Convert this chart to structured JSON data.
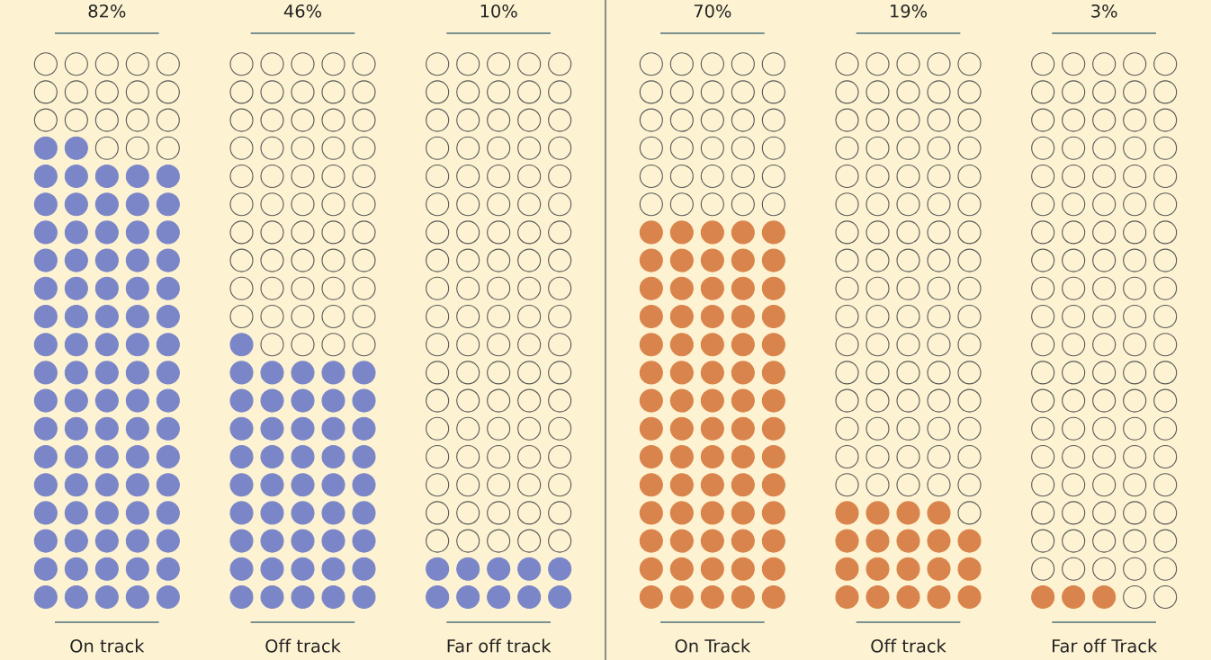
{
  "chart_data": {
    "type": "other",
    "categories": [
      "On track",
      "Off track",
      "Far off track",
      "On Track",
      "Off track",
      "Far off Track"
    ],
    "values": [
      82,
      46,
      10,
      70,
      19,
      3
    ],
    "value_labels": [
      "82%",
      "46%",
      "10%",
      "70%",
      "19%",
      "3%"
    ],
    "colors": [
      "#7b86c8",
      "#7b86c8",
      "#7b86c8",
      "#d9844c",
      "#d9844c",
      "#d9844c"
    ]
  }
}
